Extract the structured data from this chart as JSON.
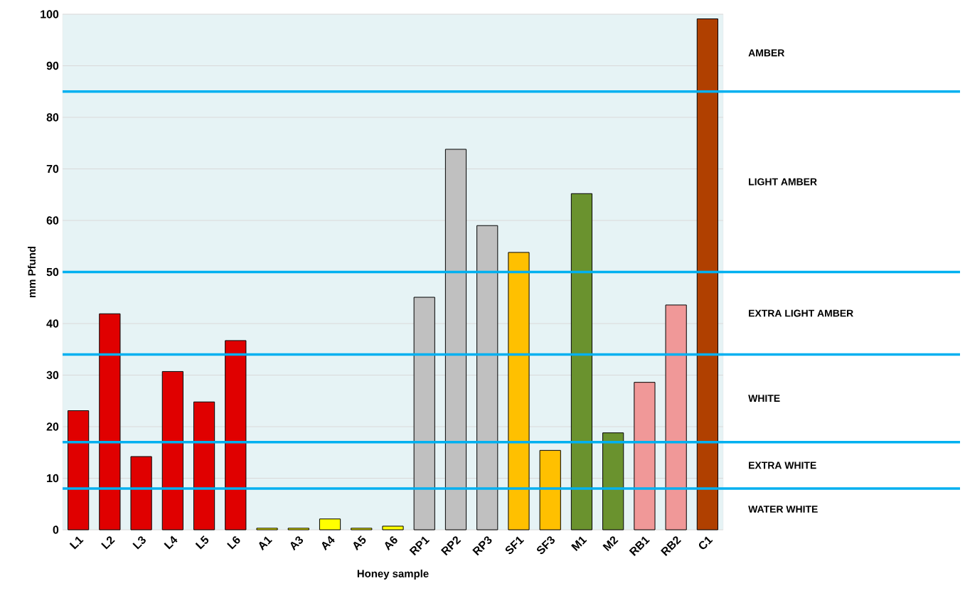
{
  "chart_data": {
    "type": "bar",
    "xlabel": "Honey sample",
    "ylabel": "mm Pfund",
    "categories": [
      "L1",
      "L2",
      "L3",
      "L4",
      "L5",
      "L6",
      "A1",
      "A3",
      "A4",
      "A5",
      "A6",
      "RP1",
      "RP2",
      "RP3",
      "SF1",
      "SF3",
      "M1",
      "M2",
      "RB1",
      "RB2",
      "C1"
    ],
    "values": [
      23.1,
      41.9,
      14.2,
      30.7,
      24.8,
      36.7,
      0.3,
      0.3,
      2.1,
      0.3,
      0.7,
      45.1,
      73.8,
      59.0,
      53.8,
      15.4,
      65.2,
      18.8,
      28.6,
      43.6,
      99.1
    ],
    "colors": [
      "#e00000",
      "#e00000",
      "#e00000",
      "#e00000",
      "#e00000",
      "#e00000",
      "#ffff00",
      "#ffff00",
      "#ffff00",
      "#ffff00",
      "#ffff00",
      "#c0c0c0",
      "#c0c0c0",
      "#c0c0c0",
      "#ffc000",
      "#ffc000",
      "#6a922e",
      "#6a922e",
      "#f09898",
      "#f09898",
      "#b04000"
    ],
    "ylim": [
      0,
      100
    ],
    "yticks": [
      0,
      10,
      20,
      30,
      40,
      50,
      60,
      70,
      80,
      90,
      100
    ],
    "grid": "y",
    "ref_lines": [
      {
        "axis": "y",
        "value": 85,
        "color": "#00b0f0"
      },
      {
        "axis": "y",
        "value": 50,
        "color": "#00b0f0"
      },
      {
        "axis": "y",
        "value": 34,
        "color": "#00b0f0"
      },
      {
        "axis": "y",
        "value": 17,
        "color": "#00b0f0"
      },
      {
        "axis": "y",
        "value": 8,
        "color": "#00b0f0"
      }
    ],
    "annotations": [
      "AMBER",
      "LIGHT AMBER",
      "EXTRA LIGHT AMBER",
      "WHITE",
      "EXTRA WHITE",
      "WATER WHITE"
    ]
  }
}
